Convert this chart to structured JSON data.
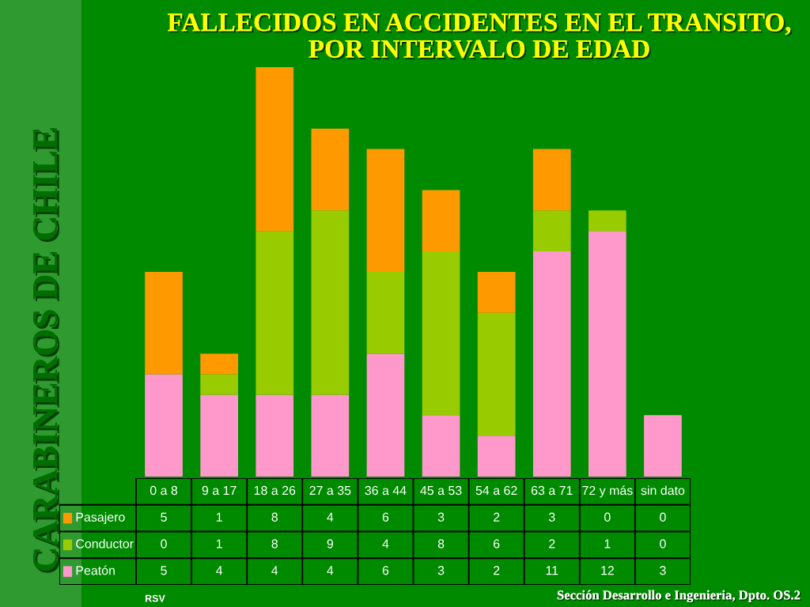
{
  "chart_data": {
    "type": "bar",
    "stacked": true,
    "title": "FALLECIDOS EN ACCIDENTES EN EL TRANSITO,\nPOR INTERVALO DE EDAD",
    "categories": [
      "0 a 8",
      "9 a 17",
      "18 a 26",
      "27 a 35",
      "36 a 44",
      "45 a 53",
      "54 a 62",
      "63 a 71",
      "72 y más",
      "sin dato"
    ],
    "series": [
      {
        "name": "Peatón",
        "color": "#ff99cc",
        "values": [
          5,
          4,
          4,
          4,
          6,
          3,
          2,
          11,
          12,
          3
        ]
      },
      {
        "name": "Conductor",
        "color": "#99cc00",
        "values": [
          0,
          1,
          8,
          9,
          4,
          8,
          6,
          2,
          1,
          0
        ]
      },
      {
        "name": "Pasajero",
        "color": "#ff9900",
        "values": [
          5,
          1,
          8,
          4,
          6,
          3,
          2,
          3,
          0,
          0
        ]
      }
    ],
    "data_labels": true,
    "legend": "bottom",
    "annotations": [
      "CARABINEROS DE CHILE",
      "Sección Desarrollo e Ingenieria, Dpto. OS.2",
      "RSV"
    ]
  }
}
